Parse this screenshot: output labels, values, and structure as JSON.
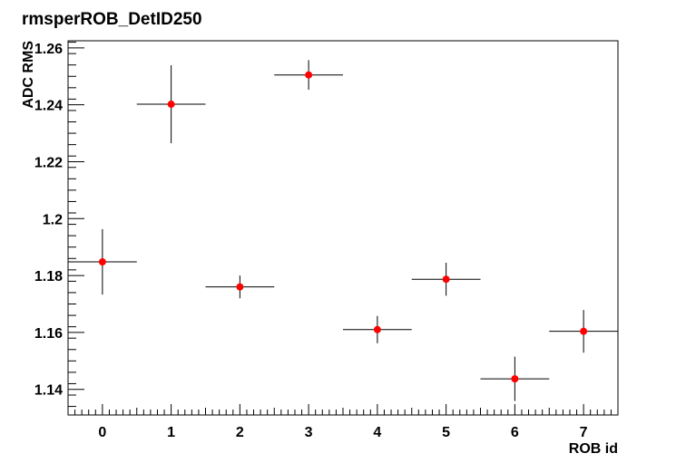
{
  "chart_data": {
    "type": "scatter",
    "title": "rmsperROB_DetID250",
    "xlabel": "ROB id",
    "ylabel": "ADC RMS",
    "xlim": [
      -0.5,
      7.5
    ],
    "ylim": [
      1.131,
      1.2625
    ],
    "x_ticks": [
      0,
      1,
      2,
      3,
      4,
      5,
      6,
      7
    ],
    "y_ticks": [
      1.14,
      1.16,
      1.18,
      1.2,
      1.22,
      1.24,
      1.26
    ],
    "y_tick_labels": [
      "1.14",
      "1.16",
      "1.18",
      "1.2",
      "1.22",
      "1.24",
      "1.26"
    ],
    "grid": false,
    "marker_color": "#ff0000",
    "points": [
      {
        "x": 0,
        "y": 1.1848,
        "xerr": 0.5,
        "yerr": 0.0115
      },
      {
        "x": 1,
        "y": 1.2402,
        "xerr": 0.5,
        "yerr": 0.0137
      },
      {
        "x": 2,
        "y": 1.176,
        "xerr": 0.5,
        "yerr": 0.004
      },
      {
        "x": 3,
        "y": 1.2505,
        "xerr": 0.5,
        "yerr": 0.0052
      },
      {
        "x": 4,
        "y": 1.161,
        "xerr": 0.5,
        "yerr": 0.0048
      },
      {
        "x": 5,
        "y": 1.1787,
        "xerr": 0.5,
        "yerr": 0.0058
      },
      {
        "x": 6,
        "y": 1.1437,
        "xerr": 0.5,
        "yerr": 0.0078
      },
      {
        "x": 7,
        "y": 1.1604,
        "xerr": 0.5,
        "yerr": 0.0075
      }
    ]
  }
}
